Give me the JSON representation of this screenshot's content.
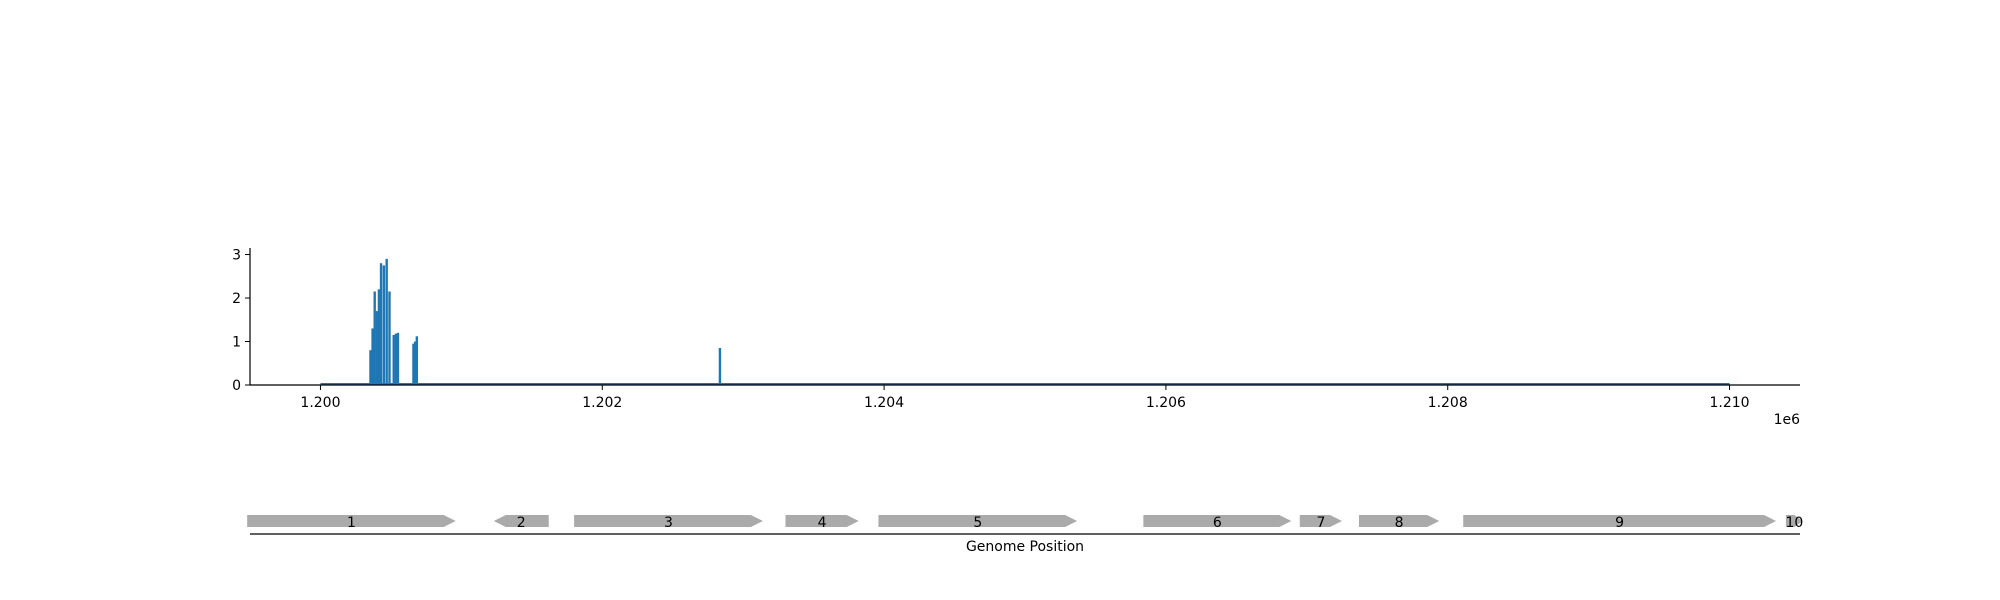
{
  "chart_data": [
    {
      "type": "bar",
      "title": "",
      "xlabel": "",
      "ylabel": "",
      "x_offset_label": "1e6",
      "xlim": [
        1199500,
        1210500
      ],
      "ylim": [
        0,
        3.15
      ],
      "grid": false,
      "x_ticks": [
        {
          "value": 1200000,
          "label": "1.200"
        },
        {
          "value": 1202000,
          "label": "1.202"
        },
        {
          "value": 1204000,
          "label": "1.204"
        },
        {
          "value": 1206000,
          "label": "1.206"
        },
        {
          "value": 1208000,
          "label": "1.208"
        },
        {
          "value": 1210000,
          "label": "1.210"
        }
      ],
      "y_ticks": [
        {
          "value": 0,
          "label": "0"
        },
        {
          "value": 1,
          "label": "1"
        },
        {
          "value": 2,
          "label": "2"
        },
        {
          "value": 3,
          "label": "3"
        }
      ],
      "baseline": {
        "x_start": 1200000,
        "x_end": 1210000
      },
      "color": "#1f77b4",
      "series": [
        {
          "x": [
            1200355,
            1200370,
            1200385,
            1200400,
            1200415,
            1200430,
            1200450,
            1200470,
            1200490,
            1200520,
            1200535,
            1200550,
            1200660,
            1200672,
            1200684,
            1202835
          ],
          "values": [
            0.8,
            1.3,
            2.15,
            1.7,
            2.2,
            2.8,
            2.75,
            2.9,
            2.15,
            1.15,
            1.18,
            1.2,
            0.95,
            1.0,
            1.12,
            0.85
          ]
        }
      ]
    },
    {
      "type": "gene-track",
      "xlabel": "Genome Position",
      "color": "#aaaaaa",
      "genes": [
        {
          "label": "1",
          "start": 1199480,
          "end": 1200960,
          "strand": "+"
        },
        {
          "label": "2",
          "start": 1201230,
          "end": 1201620,
          "strand": "-"
        },
        {
          "label": "3",
          "start": 1201800,
          "end": 1203140,
          "strand": "+"
        },
        {
          "label": "4",
          "start": 1203300,
          "end": 1203820,
          "strand": "+"
        },
        {
          "label": "5",
          "start": 1203960,
          "end": 1205370,
          "strand": "+"
        },
        {
          "label": "6",
          "start": 1205840,
          "end": 1206890,
          "strand": "+"
        },
        {
          "label": "7",
          "start": 1206950,
          "end": 1207250,
          "strand": "+"
        },
        {
          "label": "8",
          "start": 1207370,
          "end": 1207940,
          "strand": "+"
        },
        {
          "label": "9",
          "start": 1208110,
          "end": 1210330,
          "strand": "+"
        },
        {
          "label": "10",
          "start": 1210400,
          "end": 1210520,
          "strand": "+"
        }
      ]
    }
  ]
}
